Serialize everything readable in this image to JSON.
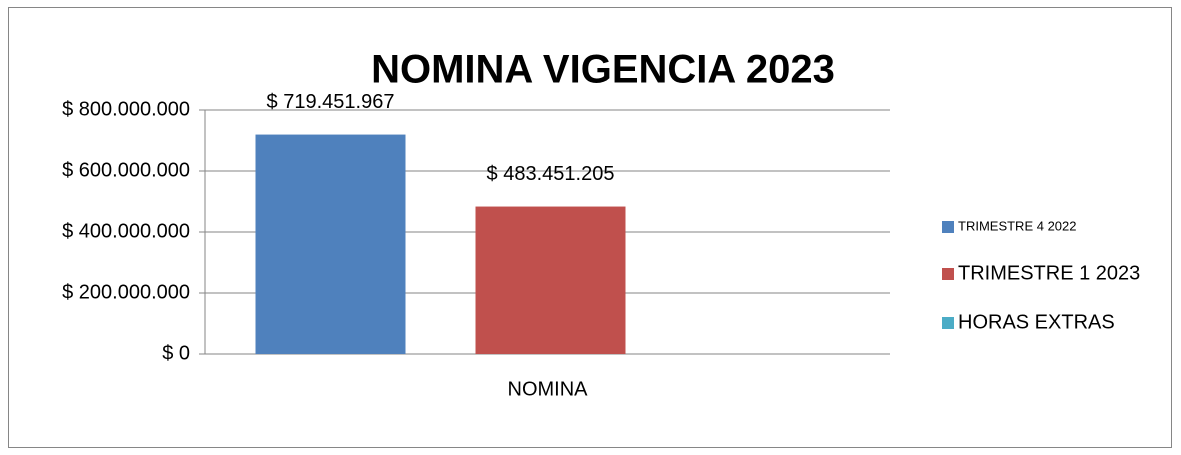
{
  "chart_data": {
    "type": "bar",
    "title": "NOMINA VIGENCIA 2023",
    "categories": [
      "NOMINA"
    ],
    "series": [
      {
        "name": "TRIMESTRE 4 2022",
        "color": "#4f81bd",
        "values": [
          719451967
        ],
        "value_labels": [
          "$ 719.451.967"
        ]
      },
      {
        "name": "TRIMESTRE 1 2023",
        "color": "#c0504d",
        "values": [
          483451205
        ],
        "value_labels": [
          "$ 483.451.205"
        ]
      },
      {
        "name": "HORAS EXTRAS",
        "color": "#4bacc6",
        "values": [
          null
        ]
      }
    ],
    "ylim": [
      0,
      800000000
    ],
    "yticks": [
      {
        "value": 0,
        "label": "$ 0"
      },
      {
        "value": 200000000,
        "label": "$ 200.000.000"
      },
      {
        "value": 400000000,
        "label": "$ 400.000.000"
      },
      {
        "value": 600000000,
        "label": "$ 600.000.000"
      },
      {
        "value": 800000000,
        "label": "$ 800.000.000"
      }
    ],
    "grid": true,
    "legend": "right"
  }
}
